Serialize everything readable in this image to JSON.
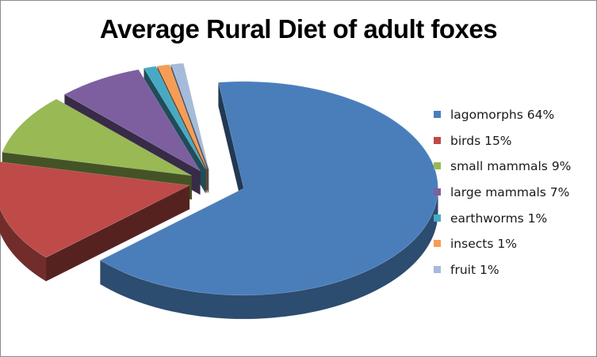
{
  "chart_data": {
    "type": "pie",
    "title": "Average Rural Diet of adult foxes",
    "legend_position": "right",
    "categories": [
      "lagomorphs",
      "birds",
      "small mammals",
      "large mammals",
      "earthworms",
      "insects",
      "fruit"
    ],
    "values": [
      64,
      15,
      9,
      7,
      1,
      1,
      1
    ],
    "legend_labels": [
      "lagomorphs 64%",
      "birds 15%",
      "small mammals 9%",
      "large mammals 7%",
      "earthworms 1%",
      "insects 1%",
      "fruit 1%"
    ],
    "colors": [
      "#4a7ebb",
      "#be4b48",
      "#98b954",
      "#7d5fa0",
      "#46aac5",
      "#f59d56",
      "#a5bbdc"
    ],
    "style": "3D exploded pie"
  }
}
